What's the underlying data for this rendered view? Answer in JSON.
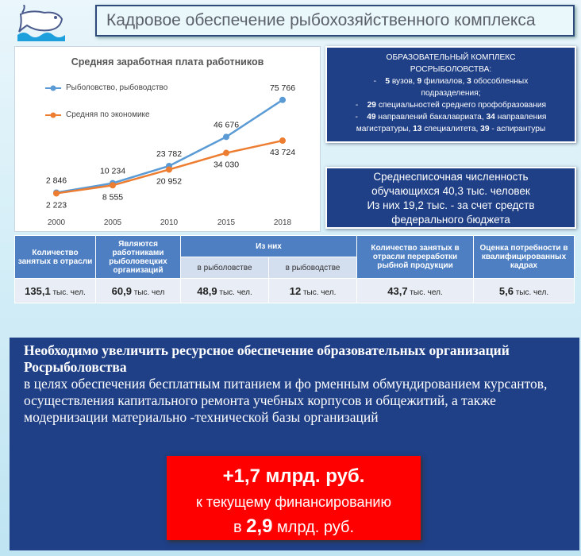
{
  "title": "Кадровое обеспечение рыбохозяйственного комплекса",
  "chart_data": {
    "type": "line",
    "title": "Средняя заработная плата работников",
    "categories": [
      "2000",
      "2005",
      "2010",
      "2015",
      "2018"
    ],
    "series": [
      {
        "name": "Рыболовство, рыбоводство",
        "color": "#5b9bd5",
        "values": [
          2846,
          10234,
          23782,
          46676,
          75766
        ],
        "labels": [
          "2 846",
          "10 234",
          "23 782",
          "46 676",
          "75 766"
        ]
      },
      {
        "name": "Средняя по экономике",
        "color": "#ed7d31",
        "values": [
          2223,
          8555,
          20952,
          34030,
          43724
        ],
        "labels": [
          "2 223",
          "8 555",
          "20 952",
          "34 030",
          "43 724"
        ]
      }
    ]
  },
  "edu": {
    "h1": "ОБРАЗОВАТЕЛЬНЫЙ КОМПЛЕКС",
    "h2": "РОСРЫБОЛОВСТВА:",
    "l1": [
      "5",
      " вузов, ",
      "9",
      " филиалов, ",
      "3",
      " обособленных"
    ],
    "l1b": "подразделения;",
    "l2": [
      "29",
      " специальностей среднего профобразования"
    ],
    "l3": [
      "49",
      " направлений бакалавриата, ",
      "34",
      " направления"
    ],
    "l4": [
      "магистратуры, ",
      "13",
      " специалитета, ",
      "39",
      " - аспирантуры"
    ]
  },
  "students": [
    "Среднесписочная численность",
    "обучающихся 40,3 тыс. человек",
    "Из них 19,2 тыс. - за счет средств",
    "федерального бюджета"
  ],
  "table": {
    "headers": [
      "Количество занятых в отрасли",
      "Являются работниками рыболовецких организаций",
      "Из них",
      "Количество занятых в отрасли переработки рыбной продукции",
      "Оценка потребности в квалифицированных кадрах"
    ],
    "sub": [
      "в рыболовстве",
      "в рыбоводстве"
    ],
    "values": [
      [
        "135,1",
        " тыс. чел."
      ],
      [
        "60,9",
        " тыс. чел"
      ],
      [
        "48,9",
        " тыс. чел."
      ],
      [
        "12",
        " тыс. чел."
      ],
      [
        "43,7",
        " тыс. чел."
      ],
      [
        "5,6",
        " тыс. чел."
      ]
    ]
  },
  "bottom": {
    "bold": "Необходимо увеличить ресурсное обеспечение образовательных организаций Росрыболовства",
    "text": "в целях обеспечения бесплатным питанием и фо рменным обмундированием курсантов, осуществления капитального ремонта учебных корпусов и общежитий, а также модернизации материально -технической базы организаций"
  },
  "funding": {
    "amount": "+1,7 млрд. руб.",
    "line2": "к текущему финансированию",
    "pre": "в ",
    "num": "2,9",
    "post": " млрд. руб."
  }
}
